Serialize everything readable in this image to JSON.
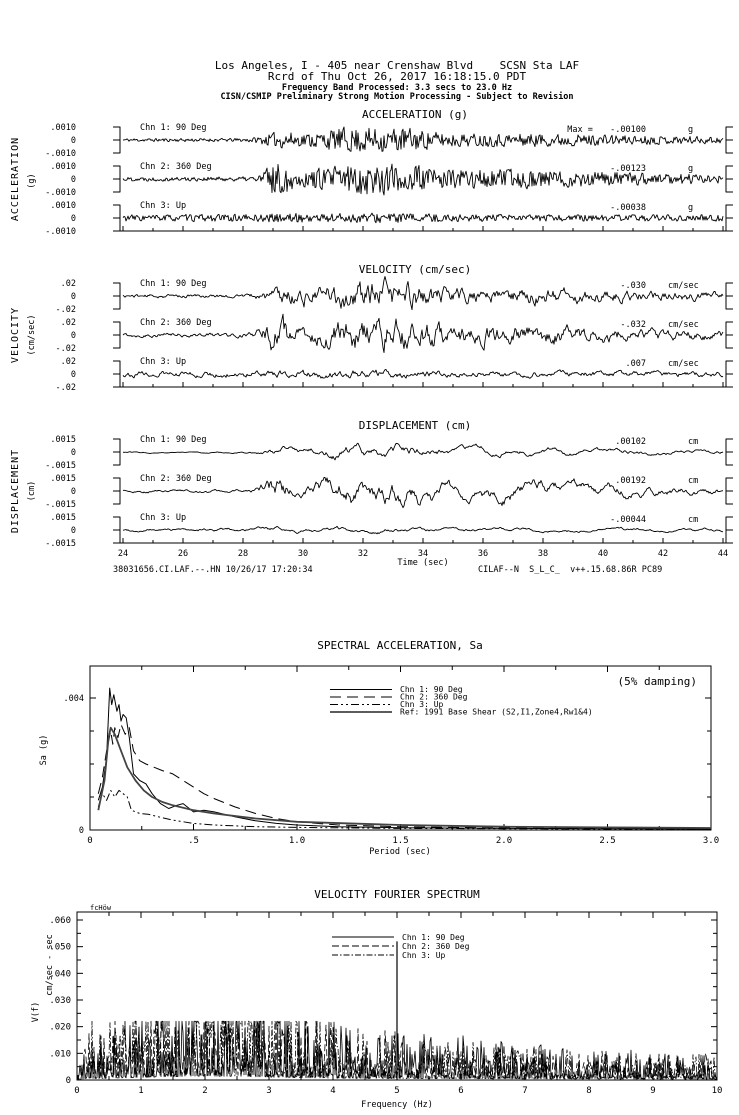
{
  "header": {
    "line1": "Los Angeles, I - 405 near Crenshaw Blvd    SCSN Sta LAF",
    "line2": "Rcrd of Thu Oct 26, 2017 16:18:15.0 PDT",
    "line3": "Frequency Band Processed: 3.3 secs to 23.0 Hz",
    "line4": "CISN/CSMIP Preliminary Strong Motion Processing - Subject to Revision"
  },
  "sections": {
    "acceleration": {
      "title": "ACCELERATION (g)",
      "side_label": "ACCELERATION",
      "side_unit": "(g)",
      "tick_top": ".0010",
      "tick_zero": "0",
      "tick_bottom": "-.0010",
      "max_prefix": "Max = ",
      "channels": [
        {
          "label": "Chn 1: 90 Deg",
          "peak": "-.00100",
          "unit": "g"
        },
        {
          "label": "Chn 2: 360 Deg",
          "peak": "-.00123",
          "unit": "g"
        },
        {
          "label": "Chn 3: Up",
          "peak": "-.00038",
          "unit": "g"
        }
      ]
    },
    "velocity": {
      "title": "VELOCITY (cm/sec)",
      "side_label": "VELOCITY",
      "side_unit": "(cm/sec)",
      "tick_top": ".02",
      "tick_zero": "0",
      "tick_bottom": "-.02",
      "channels": [
        {
          "label": "Chn 1: 90 Deg",
          "peak": "-.030",
          "unit": "cm/sec"
        },
        {
          "label": "Chn 2: 360 Deg",
          "peak": "-.032",
          "unit": "cm/sec"
        },
        {
          "label": "Chn 3: Up",
          "peak": ".007",
          "unit": "cm/sec"
        }
      ]
    },
    "displacement": {
      "title": "DISPLACEMENT (cm)",
      "side_label": "DISPLACEMENT",
      "side_unit": "(cm)",
      "tick_top": ".0015",
      "tick_zero": "0",
      "tick_bottom": "-.0015",
      "channels": [
        {
          "label": "Chn 1: 90 Deg",
          "peak": ".00102",
          "unit": "cm"
        },
        {
          "label": "Chn 2: 360 Deg",
          "peak": ".00192",
          "unit": "cm"
        },
        {
          "label": "Chn 3: Up",
          "peak": "-.00044",
          "unit": "cm"
        }
      ]
    }
  },
  "time_axis": {
    "tick_labels": [
      "24",
      "26",
      "28",
      "30",
      "32",
      "34",
      "36",
      "38",
      "40",
      "42",
      "44"
    ],
    "label": "Time (sec)",
    "footer_left": "38031656.CI.LAF.--.HN 10/26/17 17:20:34",
    "footer_right": "CILAF--N  S_L_C_  v++.15.68.86R PC89"
  },
  "sa_chart": {
    "title": "SPECTRAL ACCELERATION, Sa",
    "damping_note": "(5% damping)",
    "ylabel": "Sa (g)",
    "xlabel": "Period (sec)",
    "ymax_label": ".004",
    "yzero_label": "0",
    "xtick_labels": [
      "0",
      ".5",
      "1.0",
      "1.5",
      "2.0",
      "2.5",
      "3.0"
    ],
    "legend": [
      {
        "label": "Chn 1: 90 Deg",
        "style": "solid"
      },
      {
        "label": "Chn 2: 360 Deg",
        "style": "dashed"
      },
      {
        "label": "Chn 3: Up",
        "style": "dashdot"
      },
      {
        "label": "Ref: 1991 Base Shear (S2,I1,Zone4,Rw1&4)",
        "style": "solid-thick"
      }
    ]
  },
  "fourier_chart": {
    "title": "VELOCITY FOURIER SPECTRUM",
    "corner_note": "fcHöw",
    "ylabel": "V(f)",
    "ylabel_unit": "cm/sec - sec",
    "ytick_labels": [
      ".060",
      ".050",
      ".040",
      ".030",
      ".020",
      ".010",
      "0"
    ],
    "xtick_labels": [
      "0",
      "1",
      "2",
      "3",
      "4",
      "5",
      "6",
      "7",
      "8",
      "9",
      "10"
    ],
    "xlabel": "Frequency (Hz)",
    "legend": [
      {
        "label": "Chn 1: 90 Deg",
        "style": "solid"
      },
      {
        "label": "Chn 2: 360 Deg",
        "style": "dashed"
      },
      {
        "label": "Chn 3: Up",
        "style": "dashdot"
      }
    ]
  },
  "chart_data": [
    {
      "type": "line",
      "title": "ACCELERATION (g)",
      "xlabel": "Time (sec)",
      "xlim": [
        24,
        44
      ],
      "ylim": [
        -0.001,
        0.001
      ],
      "series": [
        {
          "name": "Chn 1: 90 Deg",
          "peak_value": -0.001,
          "units": "g"
        },
        {
          "name": "Chn 2: 360 Deg",
          "peak_value": -0.00123,
          "units": "g"
        },
        {
          "name": "Chn 3: Up",
          "peak_value": -0.00038,
          "units": "g"
        }
      ]
    },
    {
      "type": "line",
      "title": "VELOCITY (cm/sec)",
      "xlabel": "Time (sec)",
      "xlim": [
        24,
        44
      ],
      "ylim": [
        -0.02,
        0.02
      ],
      "series": [
        {
          "name": "Chn 1: 90 Deg",
          "peak_value": -0.03,
          "units": "cm/sec"
        },
        {
          "name": "Chn 2: 360 Deg",
          "peak_value": -0.032,
          "units": "cm/sec"
        },
        {
          "name": "Chn 3: Up",
          "peak_value": 0.007,
          "units": "cm/sec"
        }
      ]
    },
    {
      "type": "line",
      "title": "DISPLACEMENT (cm)",
      "xlabel": "Time (sec)",
      "xlim": [
        24,
        44
      ],
      "ylim": [
        -0.0015,
        0.0015
      ],
      "series": [
        {
          "name": "Chn 1: 90 Deg",
          "peak_value": 0.00102,
          "units": "cm"
        },
        {
          "name": "Chn 2: 360 Deg",
          "peak_value": 0.00192,
          "units": "cm"
        },
        {
          "name": "Chn 3: Up",
          "peak_value": -0.00044,
          "units": "cm"
        }
      ]
    },
    {
      "type": "line",
      "title": "SPECTRAL ACCELERATION, Sa",
      "xlabel": "Period (sec)",
      "ylabel": "Sa (g)",
      "xlim": [
        0,
        3.0
      ],
      "ylim": [
        0,
        0.0045
      ],
      "annotation": "(5% damping)",
      "series": [
        {
          "name": "Chn 1: 90 Deg",
          "points": [
            [
              0.04,
              0.0009
            ],
            [
              0.06,
              0.0013
            ],
            [
              0.08,
              0.0022
            ],
            [
              0.095,
              0.0043
            ],
            [
              0.105,
              0.0038
            ],
            [
              0.115,
              0.0041
            ],
            [
              0.13,
              0.0036
            ],
            [
              0.14,
              0.0038
            ],
            [
              0.15,
              0.0033
            ],
            [
              0.16,
              0.0035
            ],
            [
              0.175,
              0.0034
            ],
            [
              0.19,
              0.0028
            ],
            [
              0.21,
              0.0017
            ],
            [
              0.24,
              0.0015
            ],
            [
              0.27,
              0.0014
            ],
            [
              0.3,
              0.0011
            ],
            [
              0.34,
              0.0008
            ],
            [
              0.38,
              0.00065
            ],
            [
              0.42,
              0.00075
            ],
            [
              0.45,
              0.0008
            ],
            [
              0.5,
              0.00055
            ],
            [
              0.55,
              0.0006
            ],
            [
              0.6,
              0.00055
            ],
            [
              0.7,
              0.0004
            ],
            [
              0.8,
              0.00028
            ],
            [
              0.9,
              0.0002
            ],
            [
              1.0,
              0.00015
            ],
            [
              1.2,
              0.0001
            ],
            [
              1.5,
              7e-05
            ],
            [
              2.0,
              5e-05
            ],
            [
              2.5,
              4e-05
            ],
            [
              3.0,
              3e-05
            ]
          ]
        },
        {
          "name": "Chn 2: 360 Deg",
          "points": [
            [
              0.04,
              0.0011
            ],
            [
              0.06,
              0.0016
            ],
            [
              0.08,
              0.0024
            ],
            [
              0.1,
              0.003
            ],
            [
              0.11,
              0.0026
            ],
            [
              0.12,
              0.0031
            ],
            [
              0.135,
              0.0028
            ],
            [
              0.15,
              0.0032
            ],
            [
              0.17,
              0.0029
            ],
            [
              0.19,
              0.0031
            ],
            [
              0.21,
              0.0024
            ],
            [
              0.24,
              0.0021
            ],
            [
              0.27,
              0.002
            ],
            [
              0.31,
              0.0019
            ],
            [
              0.35,
              0.0018
            ],
            [
              0.4,
              0.0017
            ],
            [
              0.45,
              0.0015
            ],
            [
              0.5,
              0.0013
            ],
            [
              0.55,
              0.0011
            ],
            [
              0.6,
              0.00095
            ],
            [
              0.7,
              0.0007
            ],
            [
              0.8,
              0.0005
            ],
            [
              0.9,
              0.00035
            ],
            [
              1.0,
              0.00025
            ],
            [
              1.2,
              0.00015
            ],
            [
              1.5,
              0.0001
            ],
            [
              2.0,
              6e-05
            ],
            [
              2.5,
              5e-05
            ],
            [
              3.0,
              4e-05
            ]
          ]
        },
        {
          "name": "Chn 3: Up",
          "points": [
            [
              0.04,
              0.0007
            ],
            [
              0.06,
              0.0011
            ],
            [
              0.08,
              0.0009
            ],
            [
              0.1,
              0.0012
            ],
            [
              0.12,
              0.001
            ],
            [
              0.14,
              0.0012
            ],
            [
              0.16,
              0.0011
            ],
            [
              0.18,
              0.001
            ],
            [
              0.2,
              0.0006
            ],
            [
              0.24,
              0.0005
            ],
            [
              0.28,
              0.00048
            ],
            [
              0.33,
              0.0004
            ],
            [
              0.4,
              0.0003
            ],
            [
              0.5,
              0.0002
            ],
            [
              0.6,
              0.00015
            ],
            [
              0.8,
              0.0001
            ],
            [
              1.0,
              8e-05
            ],
            [
              1.5,
              5e-05
            ],
            [
              2.0,
              4e-05
            ],
            [
              3.0,
              2e-05
            ]
          ]
        },
        {
          "name": "Ref: 1991 Base Shear (S2,I1,Zone4,Rw1&4)",
          "points": [
            [
              0.04,
              0.0006
            ],
            [
              0.07,
              0.0015
            ],
            [
              0.09,
              0.0028
            ],
            [
              0.1,
              0.0031
            ],
            [
              0.12,
              0.0029
            ],
            [
              0.15,
              0.0024
            ],
            [
              0.18,
              0.0019
            ],
            [
              0.22,
              0.0015
            ],
            [
              0.26,
              0.0012
            ],
            [
              0.3,
              0.001
            ],
            [
              0.35,
              0.00085
            ],
            [
              0.4,
              0.00075
            ],
            [
              0.5,
              0.0006
            ],
            [
              0.6,
              0.0005
            ],
            [
              0.8,
              0.00035
            ],
            [
              1.0,
              0.00025
            ],
            [
              1.5,
              0.00015
            ],
            [
              2.0,
              0.0001
            ],
            [
              2.5,
              8e-05
            ],
            [
              3.0,
              6e-05
            ]
          ]
        }
      ]
    },
    {
      "type": "line",
      "title": "VELOCITY FOURIER SPECTRUM",
      "xlabel": "Frequency (Hz)",
      "ylabel": "V(f) cm/sec - sec",
      "xlim": [
        0,
        10
      ],
      "ylim": [
        0,
        0.06
      ],
      "spike": {
        "frequency_hz": 5.0,
        "amplitude": 0.052
      },
      "envelope_points": [
        [
          0,
          0
        ],
        [
          0.3,
          0.004
        ],
        [
          1,
          0.01
        ],
        [
          2,
          0.015
        ],
        [
          3,
          0.012
        ],
        [
          4,
          0.008
        ],
        [
          5,
          0.008
        ],
        [
          6,
          0.007
        ],
        [
          7,
          0.005
        ],
        [
          8,
          0.005
        ],
        [
          9,
          0.006
        ],
        [
          10,
          0.004
        ]
      ],
      "series": [
        {
          "name": "Chn 1: 90 Deg"
        },
        {
          "name": "Chn 2: 360 Deg"
        },
        {
          "name": "Chn 3: Up"
        }
      ]
    }
  ]
}
